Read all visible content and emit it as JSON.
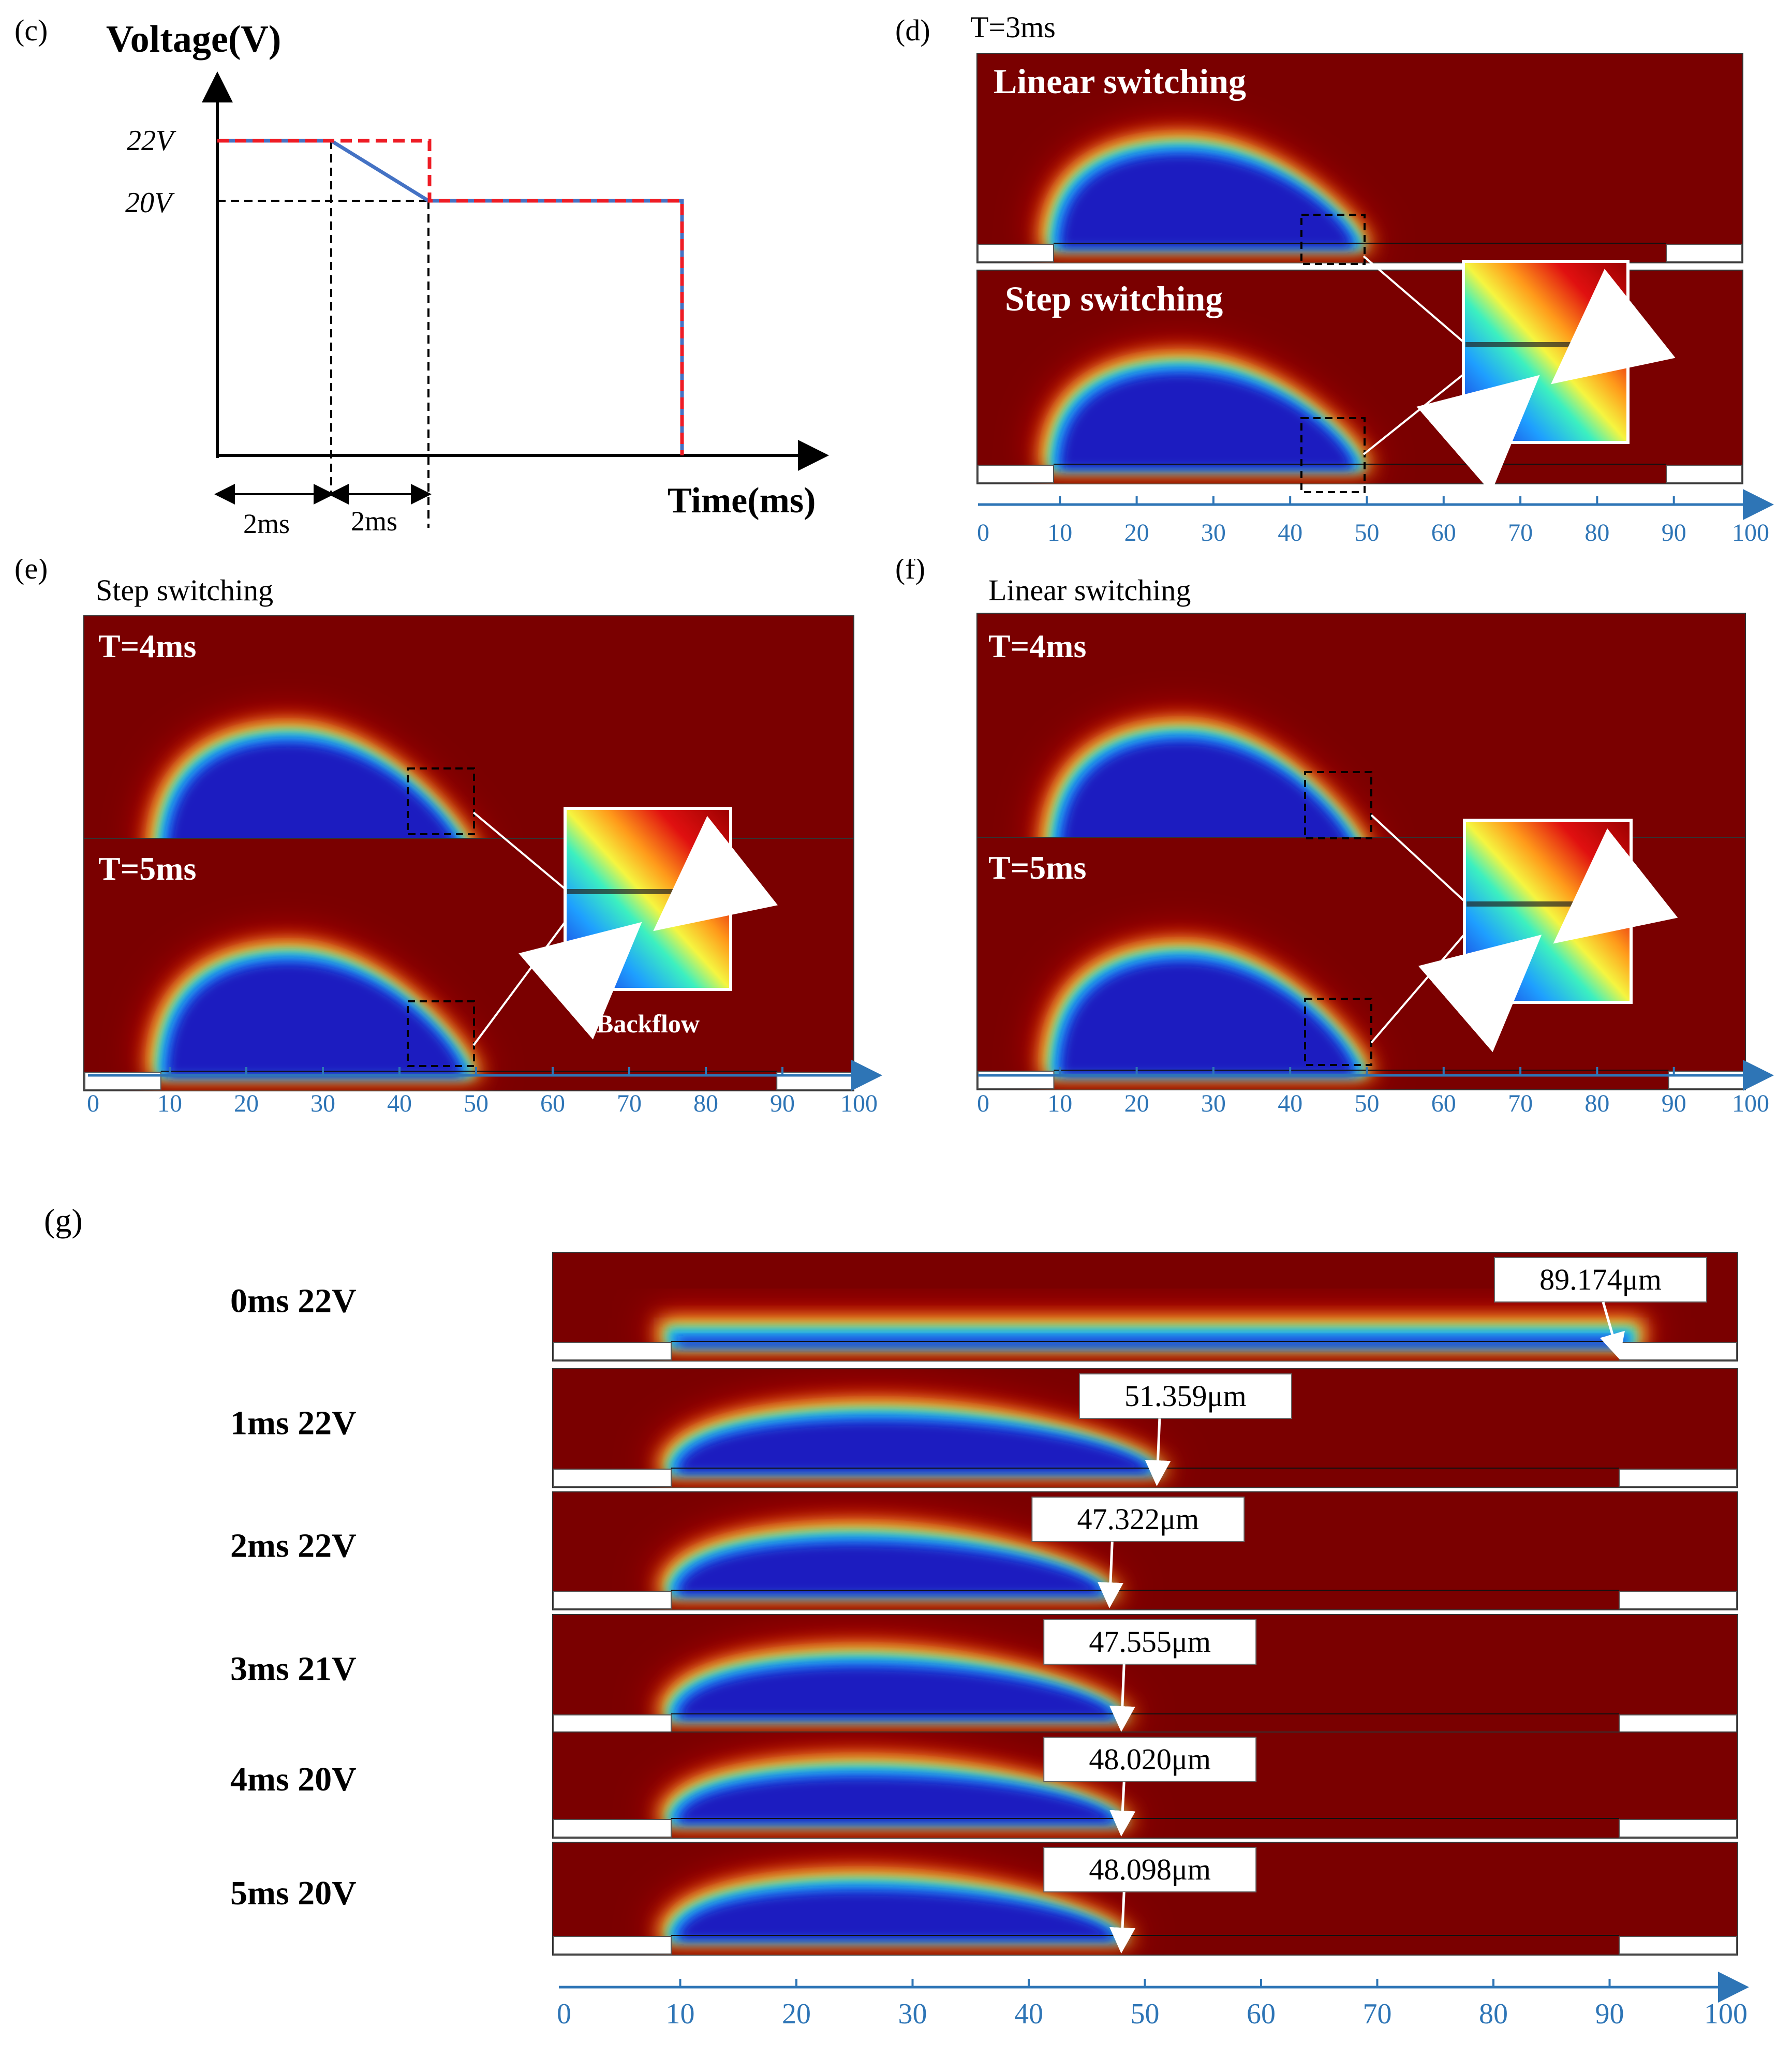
{
  "panel_c": {
    "label": "(c)",
    "y_title": "Voltage(V)",
    "x_title": "Time(ms)",
    "v_high": "22V",
    "v_low": "20V",
    "dur1": "2ms",
    "dur2": "2ms",
    "colors": {
      "step": "#ee1c25",
      "linear": "#4472c4"
    }
  },
  "panel_d": {
    "label": "(d)",
    "time": "T=3ms",
    "top_title": "Linear switching",
    "bottom_title": "Step switching"
  },
  "panel_e": {
    "label": "(e)",
    "mode": "Step switching",
    "t1": "T=4ms",
    "t2": "T=5ms",
    "note": "Backflow"
  },
  "panel_f": {
    "label": "(f)",
    "mode": "Linear switching",
    "t1": "T=4ms",
    "t2": "T=5ms"
  },
  "panel_g": {
    "label": "(g)",
    "rows": [
      {
        "label": "0ms 22V",
        "value": "89.174μm",
        "contact": 91
      },
      {
        "label": "1ms 22V",
        "value": "51.359μm",
        "contact": 51
      },
      {
        "label": "2ms 22V",
        "value": "47.322μm",
        "contact": 47
      },
      {
        "label": "3ms 21V",
        "value": "47.555μm",
        "contact": 48
      },
      {
        "label": "4ms 20V",
        "value": "48.020μm",
        "contact": 48
      },
      {
        "label": "5ms 20V",
        "value": "48.098μm",
        "contact": 48
      }
    ]
  },
  "axis": {
    "ticks": [
      "0",
      "10",
      "20",
      "30",
      "40",
      "50",
      "60",
      "70",
      "80",
      "90",
      "100"
    ],
    "color": "#2e75b6"
  }
}
